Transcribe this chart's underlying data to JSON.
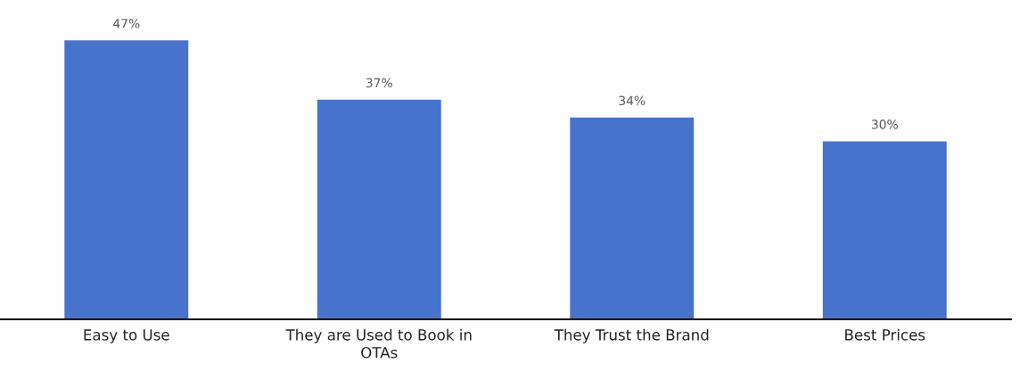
{
  "chart_data": {
    "type": "bar",
    "categories": [
      "Easy to Use",
      "They are Used to Book in OTAs",
      "They Trust the Brand",
      "Best Prices"
    ],
    "values": [
      47,
      37,
      34,
      30
    ],
    "value_labels": [
      "47%",
      "37%",
      "34%",
      "30%"
    ],
    "color": "#4873cc"
  }
}
